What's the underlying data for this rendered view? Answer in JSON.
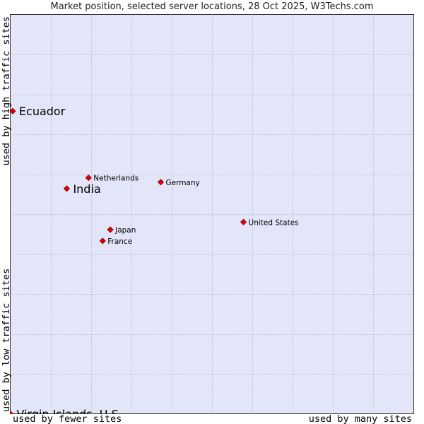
{
  "chart_data": {
    "type": "scatter",
    "title": "Market position, selected server locations, 28 Oct 2025, W3Techs.com",
    "xlabel_left": "used by fewer sites",
    "xlabel_right": "used by many sites",
    "ylabel_top": "used by high traffic sites",
    "ylabel_bottom": "used by low traffic sites",
    "xlim": [
      0,
      100
    ],
    "ylim": [
      0,
      100
    ],
    "grid": true,
    "colors": {
      "plot_bg": "#e3e5f8",
      "grid": "#9a9aa8",
      "point": "#dd0000"
    },
    "points": [
      {
        "label": "Ecuador",
        "x": 0.6,
        "y": 75.8,
        "emphasis": true
      },
      {
        "label": "Netherlands",
        "x": 19.4,
        "y": 59.1,
        "emphasis": false
      },
      {
        "label": "India",
        "x": 14.0,
        "y": 56.4,
        "emphasis": true
      },
      {
        "label": "Germany",
        "x": 37.3,
        "y": 58.0,
        "emphasis": false
      },
      {
        "label": "United States",
        "x": 57.8,
        "y": 48.0,
        "emphasis": false
      },
      {
        "label": "Japan",
        "x": 24.8,
        "y": 46.1,
        "emphasis": false
      },
      {
        "label": "France",
        "x": 22.9,
        "y": 43.3,
        "emphasis": false
      },
      {
        "label": "Virgin Islands, U.S.",
        "x": 0.0,
        "y": 0.0,
        "emphasis": true
      }
    ]
  }
}
